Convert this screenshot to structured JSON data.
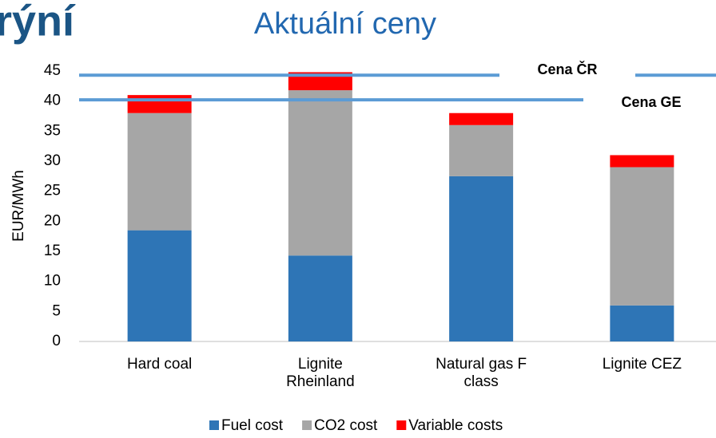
{
  "header_fragment": "rýní",
  "chart_data": {
    "type": "stacked_bar",
    "title": "Aktuální ceny",
    "y_label": "EUR/MWh",
    "categories": [
      "Hard coal",
      "Lignite Rheinland",
      "Natural gas F class",
      "Lignite CEZ"
    ],
    "series": [
      {
        "name": "Fuel cost",
        "color": "#2e75b6",
        "values": [
          18.5,
          14.3,
          27.5,
          6
        ]
      },
      {
        "name": "CO2 cost",
        "color": "#a6a6a6",
        "values": [
          19.5,
          27.5,
          8.5,
          23
        ]
      },
      {
        "name": "Variable costs",
        "color": "#ff0000",
        "values": [
          3,
          3,
          2,
          2
        ]
      }
    ],
    "reference_lines": [
      {
        "label": "Cena ČR",
        "value": 44.3,
        "color": "#5b9bd5"
      },
      {
        "label": "Cena GE",
        "value": 40.2,
        "color": "#5b9bd5"
      }
    ],
    "ylim": [
      0,
      45
    ],
    "yticks": [
      0,
      5,
      10,
      15,
      20,
      25,
      30,
      35,
      40,
      45
    ],
    "grid": false,
    "legend": "bottom"
  }
}
